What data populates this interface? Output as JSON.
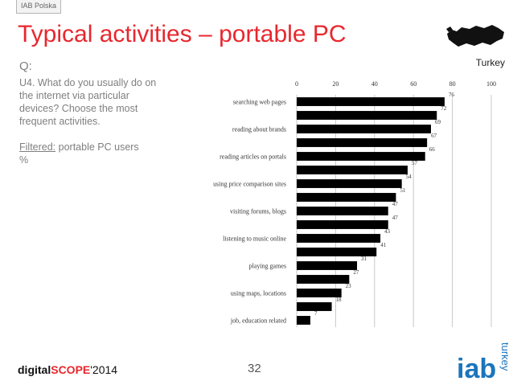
{
  "header": {
    "tag": "IAB Polska",
    "title": "Typical activities – portable PC",
    "country": "Turkey"
  },
  "question": {
    "label": "Q:",
    "text": "U4. What do you usually do on the internet via particular devices? Choose the most frequent activities.",
    "filter_label": "Filtered:",
    "filter_value": " portable PC users",
    "unit": "%"
  },
  "footer": {
    "brand_part1": "digital",
    "brand_part2": "SCOPE",
    "brand_part3": "'2014",
    "page_number": "32",
    "logo_text": "iab",
    "logo_sub": "turkey"
  },
  "colors": {
    "title": "#e8272e",
    "bars": "#000000",
    "grid": "#c8c8c8",
    "logo": "#1b75bc"
  },
  "chart_data": {
    "type": "bar",
    "orientation": "horizontal",
    "xlim": [
      0,
      100
    ],
    "x_ticks": [
      0,
      20,
      40,
      60,
      80,
      100
    ],
    "grid": true,
    "categories": [
      "searching web pages",
      "",
      "reading about brands",
      "",
      "reading articles on portals",
      "",
      "using price comparison sites",
      "",
      "visiting forums, blogs",
      "",
      "listening to music online",
      "",
      "playing games",
      "",
      "using maps, locations",
      "",
      "job, education related"
    ],
    "values": [
      76,
      72,
      69,
      67,
      66,
      57,
      54,
      51,
      47,
      47,
      43,
      41,
      31,
      27,
      23,
      18,
      7
    ]
  }
}
